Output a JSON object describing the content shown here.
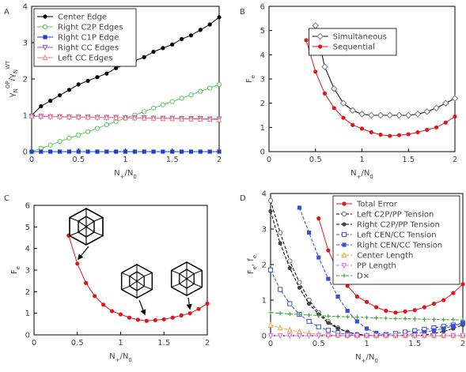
{
  "chart_data": [
    {
      "panel": "A",
      "type": "line",
      "x": [
        0,
        0.1,
        0.2,
        0.3,
        0.4,
        0.5,
        0.6,
        0.7,
        0.8,
        0.9,
        1.0,
        1.1,
        1.2,
        1.3,
        1.4,
        1.5,
        1.6,
        1.7,
        1.8,
        1.9,
        2.0
      ],
      "xlim": [
        0,
        2
      ],
      "ylim": [
        0,
        4
      ],
      "xticks": [
        0,
        0.5,
        1,
        1.5,
        2
      ],
      "yticks": [
        0,
        1,
        2,
        3,
        4
      ],
      "xlabel": [
        {
          "text": "N"
        },
        {
          "text": "+",
          "pos": "sub"
        },
        {
          "text": "/N"
        },
        {
          "text": "0",
          "pos": "sub"
        }
      ],
      "ylabel": [
        {
          "text": "γ"
        },
        {
          "text": "N",
          "pos": "sub"
        },
        {
          "text": "OP",
          "pos": "sup"
        },
        {
          "text": "/γ"
        },
        {
          "text": "N",
          "pos": "sub"
        },
        {
          "text": "WT",
          "pos": "sup"
        }
      ],
      "legend": "upper left",
      "series": [
        {
          "name": "Center Edge",
          "color": "#000000",
          "line_color": "#000000",
          "marker": "circle",
          "values": [
            1.0,
            1.25,
            1.4,
            1.55,
            1.7,
            1.85,
            1.95,
            2.05,
            2.15,
            2.3,
            2.4,
            2.5,
            2.6,
            2.75,
            2.85,
            2.95,
            3.1,
            3.2,
            3.35,
            3.5,
            3.7
          ]
        },
        {
          "name": "Right C2P Edges",
          "color": "#55cc55",
          "line_color": "#55cc55",
          "marker": "open-circle",
          "values": [
            0,
            0.09,
            0.18,
            0.28,
            0.37,
            0.46,
            0.55,
            0.64,
            0.74,
            0.83,
            0.92,
            1.01,
            1.1,
            1.2,
            1.29,
            1.38,
            1.47,
            1.56,
            1.66,
            1.75,
            1.85
          ]
        },
        {
          "name": "Right C1P Edge",
          "color": "#1f3fd0",
          "line_color": "#1f3fd0",
          "marker": "square",
          "values": [
            0,
            0,
            0,
            0,
            0,
            0,
            0,
            0,
            0,
            0,
            0,
            0,
            0,
            0,
            0,
            0,
            0,
            0,
            0,
            0,
            0
          ]
        },
        {
          "name": "Right CC Edges",
          "color": "#8a5ad0",
          "line_color": "#8a5ad0",
          "marker": "triangle-down",
          "values": [
            0.97,
            0.97,
            0.96,
            0.96,
            0.95,
            0.95,
            0.95,
            0.94,
            0.94,
            0.94,
            0.93,
            0.93,
            0.93,
            0.92,
            0.92,
            0.92,
            0.91,
            0.91,
            0.91,
            0.9,
            0.9
          ]
        },
        {
          "name": "Left CC Edges",
          "color": "#f08080",
          "line_color": "#f08080",
          "marker": "triangle-up",
          "values": [
            0.98,
            0.98,
            0.97,
            0.97,
            0.96,
            0.96,
            0.95,
            0.95,
            0.94,
            0.94,
            0.93,
            0.93,
            0.92,
            0.92,
            0.91,
            0.91,
            0.9,
            0.9,
            0.89,
            0.89,
            0.88
          ]
        }
      ]
    },
    {
      "panel": "B",
      "type": "line",
      "x": [
        0.4,
        0.5,
        0.6,
        0.7,
        0.8,
        0.9,
        1.0,
        1.1,
        1.2,
        1.3,
        1.4,
        1.5,
        1.6,
        1.7,
        1.8,
        1.9,
        2.0
      ],
      "xlim": [
        0,
        2
      ],
      "ylim": [
        0,
        6
      ],
      "xticks": [
        0,
        0.5,
        1,
        1.5,
        2
      ],
      "yticks": [
        0,
        1,
        2,
        3,
        4,
        5,
        6
      ],
      "xlabel": [
        {
          "text": "N"
        },
        {
          "text": "+",
          "pos": "sub"
        },
        {
          "text": "/N"
        },
        {
          "text": "0",
          "pos": "sub"
        }
      ],
      "ylabel": [
        {
          "text": "F"
        },
        {
          "text": "e",
          "pos": "sub"
        }
      ],
      "legend": "upper right",
      "series": [
        {
          "name": "Simultaneous",
          "color": "#777777",
          "line_color": "#000000",
          "marker": "diamond",
          "values": [
            null,
            5.2,
            3.5,
            2.6,
            2.0,
            1.7,
            1.55,
            1.5,
            1.5,
            1.5,
            1.5,
            1.5,
            1.55,
            1.65,
            1.8,
            2.0,
            2.2
          ]
        },
        {
          "name": "Sequential",
          "color": "#e0161b",
          "line_color": "#e0161b",
          "marker": "circle",
          "values": [
            4.6,
            3.3,
            2.4,
            1.8,
            1.4,
            1.1,
            0.95,
            0.8,
            0.7,
            0.65,
            0.68,
            0.72,
            0.8,
            0.9,
            1.0,
            1.2,
            1.45
          ]
        }
      ]
    },
    {
      "panel": "C",
      "type": "line",
      "x": [
        0.4,
        0.5,
        0.6,
        0.7,
        0.8,
        0.9,
        1.0,
        1.1,
        1.2,
        1.3,
        1.4,
        1.5,
        1.6,
        1.7,
        1.8,
        1.9,
        2.0
      ],
      "xlim": [
        0,
        2
      ],
      "ylim": [
        0,
        6
      ],
      "xticks": [
        0,
        0.5,
        1,
        1.5,
        2
      ],
      "yticks": [
        0,
        1,
        2,
        3,
        4,
        5,
        6
      ],
      "xlabel": [
        {
          "text": "N"
        },
        {
          "text": "+",
          "pos": "sub"
        },
        {
          "text": "/N"
        },
        {
          "text": "0",
          "pos": "sub"
        }
      ],
      "ylabel": [
        {
          "text": "F"
        },
        {
          "text": "e",
          "pos": "sub"
        }
      ],
      "series": [
        {
          "color": "#e0161b",
          "line_color": "#e0161b",
          "marker": "circle",
          "values": [
            4.6,
            3.3,
            2.4,
            1.8,
            1.4,
            1.1,
            0.95,
            0.8,
            0.7,
            0.65,
            0.68,
            0.72,
            0.8,
            0.9,
            1.0,
            1.2,
            1.45
          ]
        }
      ]
    },
    {
      "panel": "D",
      "type": "line",
      "x": [
        0,
        0.1,
        0.2,
        0.3,
        0.4,
        0.5,
        0.6,
        0.7,
        0.8,
        0.9,
        1.0,
        1.1,
        1.2,
        1.3,
        1.4,
        1.5,
        1.6,
        1.7,
        1.8,
        1.9,
        2.0
      ],
      "xlim": [
        0,
        2
      ],
      "ylim": [
        0,
        4
      ],
      "xticks": [
        0,
        0.5,
        1,
        1.5,
        2
      ],
      "yticks": [
        0,
        1,
        2,
        3,
        4
      ],
      "xlabel": [
        {
          "text": "N"
        },
        {
          "text": "+",
          "pos": "sub"
        },
        {
          "text": "/N"
        },
        {
          "text": "0",
          "pos": "sub"
        }
      ],
      "ylabel": [
        {
          "text": "F"
        },
        {
          "text": "e",
          "pos": "sub"
        },
        {
          "text": ", f"
        },
        {
          "text": "e",
          "pos": "sub"
        }
      ],
      "legend": "upper right",
      "series": [
        {
          "name": "Total Error",
          "color": "#e0161b",
          "line_color": "#e0161b",
          "marker": "circle",
          "values": [
            null,
            null,
            null,
            null,
            null,
            3.3,
            2.4,
            1.8,
            1.4,
            1.1,
            0.95,
            0.8,
            0.7,
            0.65,
            0.68,
            0.72,
            0.8,
            0.9,
            1.0,
            1.2,
            1.45
          ]
        },
        {
          "name": "Left C2P/PP Tension",
          "color": "#777777",
          "line_color": "#000000",
          "marker": "open-circle",
          "dash": true,
          "values": [
            3.8,
            2.9,
            2.1,
            1.5,
            1.0,
            0.65,
            0.4,
            0.22,
            0.1,
            0.04,
            0.01,
            0,
            0,
            0,
            0,
            0,
            0,
            0,
            0,
            0,
            0
          ]
        },
        {
          "name": "Right C2P/PP Tension",
          "color": "#444444",
          "line_color": "#000000",
          "marker": "circle",
          "dash": true,
          "values": [
            3.5,
            2.6,
            1.9,
            1.35,
            0.9,
            0.6,
            0.36,
            0.2,
            0.1,
            0.04,
            0.01,
            0,
            0,
            0,
            0,
            0,
            0.02,
            0.06,
            0.12,
            0.2,
            0.3
          ]
        },
        {
          "name": "Left CEN/CC Tension",
          "color": "#3a4fd8",
          "line_color": "#3a4fd8",
          "marker": "open-square",
          "dash": true,
          "values": [
            1.85,
            1.3,
            0.9,
            0.6,
            0.4,
            0.25,
            0.15,
            0.08,
            0.03,
            0.01,
            0,
            0.01,
            0.03,
            0.06,
            0.1,
            0.14,
            0.18,
            0.22,
            0.26,
            0.3,
            0.35
          ]
        },
        {
          "name": "Right CEN/CC Tension",
          "color": "#3a4fd8",
          "line_color": "#3a4fd8",
          "marker": "square",
          "dash": true,
          "values": [
            null,
            null,
            null,
            3.6,
            2.9,
            2.2,
            1.6,
            1.1,
            0.7,
            0.4,
            0.2,
            0.08,
            0.02,
            0,
            0.02,
            0.06,
            0.1,
            0.15,
            0.2,
            0.27,
            0.35
          ]
        },
        {
          "name": "Center Length",
          "color": "#f0a040",
          "line_color": "#f0a040",
          "marker": "triangle-up",
          "dash": true,
          "values": [
            0.3,
            0.22,
            0.16,
            0.11,
            0.07,
            0.04,
            0.02,
            0.01,
            0,
            0,
            0,
            0,
            0,
            0,
            0,
            0,
            0,
            0,
            0,
            0,
            0
          ]
        },
        {
          "name": "PP Length",
          "color": "#e070e0",
          "line_color": "#e070e0",
          "marker": "triangle-down",
          "dash": true,
          "values": [
            0,
            0,
            0,
            0,
            0,
            0,
            0,
            0,
            0,
            0,
            0,
            0,
            0,
            0,
            0,
            0,
            0,
            0,
            0,
            0,
            0
          ]
        },
        {
          "name": "D×",
          "color": "#30a030",
          "line_color": "#30a030",
          "marker": "plus",
          "dash": true,
          "values": [
            0.65,
            0.63,
            0.61,
            0.6,
            0.58,
            0.57,
            0.55,
            0.54,
            0.53,
            0.52,
            0.51,
            0.5,
            0.49,
            0.48,
            0.48,
            0.47,
            0.46,
            0.46,
            0.45,
            0.45,
            0.44
          ]
        }
      ]
    }
  ]
}
